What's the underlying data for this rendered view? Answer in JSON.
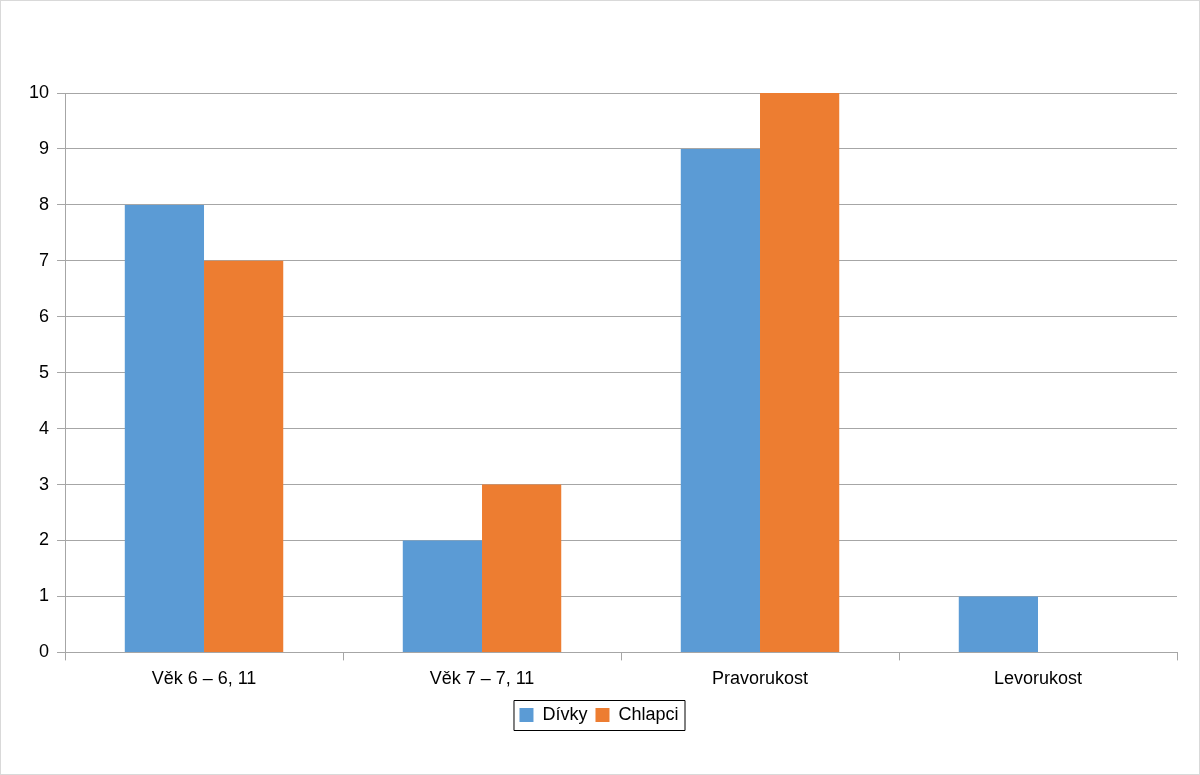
{
  "chart_data": {
    "type": "bar",
    "categories": [
      "Věk 6 – 6, 11",
      "Věk 7 – 7, 11",
      "Pravorukost",
      "Levorukost"
    ],
    "series": [
      {
        "name": "Dívky",
        "color": "#5b9bd5",
        "values": [
          8,
          2,
          9,
          1
        ]
      },
      {
        "name": "Chlapci",
        "color": "#ed7d31",
        "values": [
          7,
          3,
          10,
          0
        ]
      }
    ],
    "ylim": [
      0,
      10
    ],
    "yticks": [
      0,
      1,
      2,
      3,
      4,
      5,
      6,
      7,
      8,
      9,
      10
    ],
    "grid": "y",
    "legend": "bottom"
  }
}
